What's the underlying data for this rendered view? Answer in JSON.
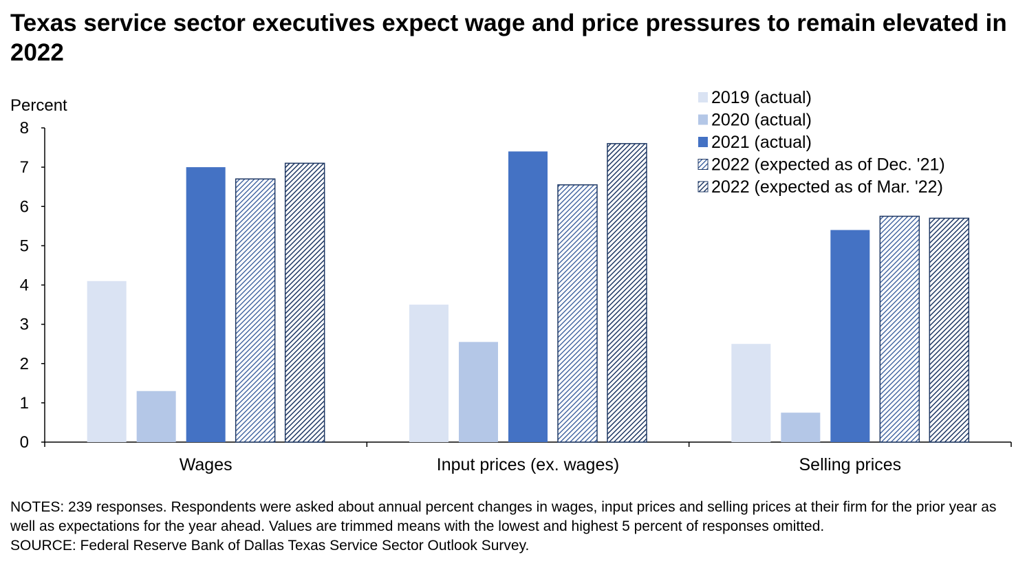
{
  "title": "Texas service sector executives expect wage and price pressures to remain elevated in 2022",
  "notes": {
    "notes_text": "NOTES: 239 responses. Respondents were asked about annual percent changes in wages, input prices and selling prices at their firm for the prior year as well as expectations for the year ahead. Values are trimmed means with the lowest and highest 5 percent of responses omitted.",
    "source_text": "SOURCE: Federal Reserve Bank of Dallas Texas Service Sector Outlook Survey."
  },
  "chart_data": {
    "type": "bar",
    "title": "Texas service sector executives expect wage and price pressures to remain elevated in 2022",
    "xlabel": "",
    "ylabel": "Percent",
    "ylim": [
      0,
      8
    ],
    "yticks": [
      "0",
      "1",
      "2",
      "3",
      "4",
      "5",
      "6",
      "7",
      "8"
    ],
    "grid": false,
    "legend_position": "top-right",
    "categories": [
      "Wages",
      "Input prices (ex. wages)",
      "Selling prices"
    ],
    "series": [
      {
        "name": "2019 (actual)",
        "values": [
          4.1,
          3.5,
          2.5
        ],
        "color": "#dae3f3",
        "pattern": "solid"
      },
      {
        "name": "2020 (actual)",
        "values": [
          1.3,
          2.55,
          0.75
        ],
        "color": "#b4c7e7",
        "pattern": "solid"
      },
      {
        "name": "2021 (actual)",
        "values": [
          7.0,
          7.4,
          5.4
        ],
        "color": "#4472c4",
        "pattern": "solid"
      },
      {
        "name": "2022 (expected as of Dec. '21)",
        "values": [
          6.7,
          6.55,
          5.75
        ],
        "color": "#4472c4",
        "pattern": "hatch-light"
      },
      {
        "name": "2022 (expected as of Mar. '22)",
        "values": [
          7.1,
          7.6,
          5.7
        ],
        "color": "#1f3864",
        "pattern": "hatch-dark"
      }
    ]
  }
}
